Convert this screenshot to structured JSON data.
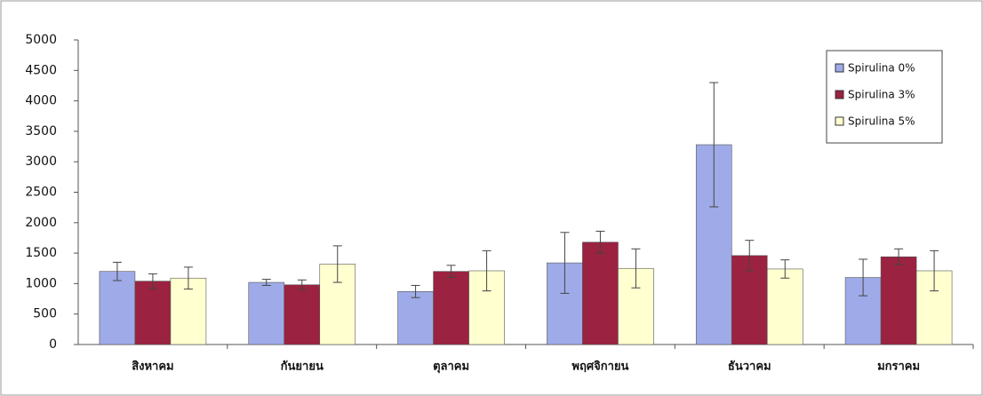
{
  "chart_data": {
    "type": "bar",
    "categories": [
      "สิงหาคม",
      "กันยายน",
      "ตุลาคม",
      "พฤศจิกายน",
      "ธันวาคม",
      "มกราคม"
    ],
    "series": [
      {
        "name": "Spirulina 0%",
        "color": "#9fabe8",
        "values": [
          1200,
          1020,
          870,
          1340,
          3280,
          1100
        ],
        "errors": [
          150,
          50,
          100,
          500,
          1020,
          300
        ]
      },
      {
        "name": "Spirulina 3%",
        "color": "#9b2240",
        "values": [
          1040,
          980,
          1200,
          1680,
          1460,
          1440
        ],
        "errors": [
          120,
          80,
          100,
          180,
          250,
          130
        ]
      },
      {
        "name": "Spirulina 5%",
        "color": "#ffffd0",
        "values": [
          1090,
          1320,
          1210,
          1250,
          1240,
          1210
        ],
        "errors": [
          180,
          300,
          330,
          320,
          150,
          330
        ]
      }
    ],
    "ylim": [
      0,
      5000
    ],
    "yticks": [
      0,
      500,
      1000,
      1500,
      2000,
      2500,
      3000,
      3500,
      4000,
      4500,
      5000
    ],
    "grid": false,
    "legend": "top-right"
  }
}
